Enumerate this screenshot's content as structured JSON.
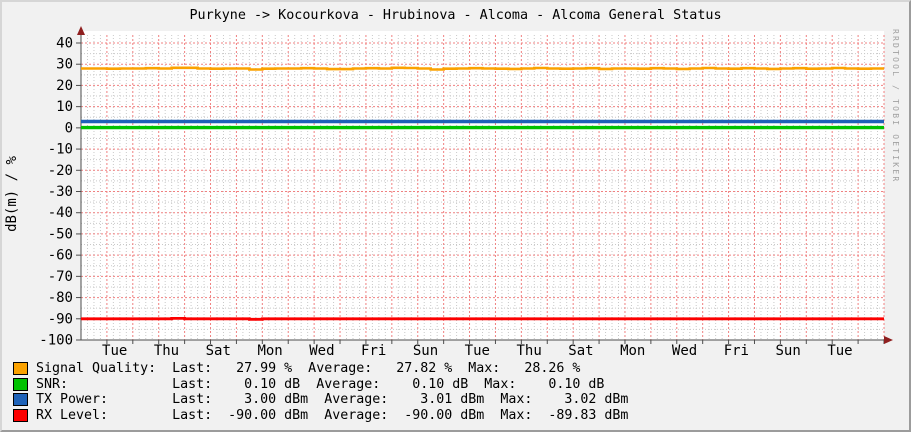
{
  "title": "Purkyne -> Kocourkova - Hrubinova - Alcoma - Alcoma General Status",
  "watermark": "RRDTOOL / TOBI OETIKER",
  "colors": {
    "background": "#f1f1f1",
    "canvas": "#ffffff",
    "grid_minor": "#c9c9c9",
    "grid_major": "#f08080",
    "axis": "#4d4d4d",
    "arrow": "#8f1f1f",
    "tick_text": "#000000",
    "watermark": "#a0a0a0"
  },
  "legend": {
    "rows": [
      {
        "name": "Signal Quality",
        "color": "#fba200",
        "unit": "%",
        "last": "27.99 %",
        "average": "27.82 %",
        "max": "28.26 %",
        "text": "Signal Quality:  Last:   27.99 %  Average:   27.82 %  Max:   28.26 %"
      },
      {
        "name": "SNR",
        "color": "#00c200",
        "unit": "dB",
        "last": "0.10 dB",
        "average": "0.10 dB",
        "max": "0.10 dB",
        "text": "SNR:             Last:    0.10 dB  Average:    0.10 dB  Max:    0.10 dB"
      },
      {
        "name": "TX Power",
        "color": "#1e62b8",
        "unit": "dBm",
        "last": "3.00 dBm",
        "average": "3.01 dBm",
        "max": "3.02 dBm",
        "text": "TX Power:        Last:    3.00 dBm  Average:    3.01 dBm  Max:    3.02 dBm"
      },
      {
        "name": "RX Level",
        "color": "#fc0000",
        "unit": "dBm",
        "last": "-90.00 dBm",
        "average": "-90.00 dBm",
        "max": "-89.83 dBm",
        "text": "RX Level:        Last:  -90.00 dBm  Average:  -90.00 dBm  Max:  -89.83 dBm"
      }
    ]
  },
  "chart_data": {
    "type": "line",
    "title": "Purkyne -> Kocourkova - Hrubinova - Alcoma - Alcoma General Status",
    "xlabel": "",
    "ylabel": "dB(m) / %",
    "ylim": [
      -100,
      40
    ],
    "y_ticks": [
      40,
      30,
      20,
      10,
      0,
      -10,
      -20,
      -30,
      -40,
      -50,
      -60,
      -70,
      -80,
      -90,
      -100
    ],
    "x_days": 31,
    "x_tick_labels": [
      "Tue",
      "Thu",
      "Sat",
      "Mon",
      "Wed",
      "Fri",
      "Sun",
      "Tue",
      "Thu",
      "Sat",
      "Mon",
      "Wed",
      "Fri",
      "Sun",
      "Tue"
    ],
    "x_tick_days": [
      1.3,
      3.3,
      5.3,
      7.3,
      9.3,
      11.3,
      13.3,
      15.3,
      17.3,
      19.3,
      21.3,
      23.3,
      25.3,
      27.3,
      29.3
    ],
    "grid": {
      "on": true,
      "minor_y_step": 5,
      "major_y_step": 10,
      "minor_x_step_days": 0.25,
      "major_x_step_days": 1
    },
    "legend_position": "bottom",
    "series": [
      {
        "name": "Signal Quality",
        "unit": "%",
        "color": "#fba200",
        "width": 2.6,
        "x_step_days": 0.5,
        "values": [
          28,
          28,
          27.9,
          28,
          28,
          28.1,
          28,
          28.3,
          28.3,
          28,
          27.9,
          28,
          28,
          27.5,
          27.9,
          28,
          28,
          28.1,
          28,
          27.7,
          27.7,
          28,
          28.1,
          28,
          28.3,
          28.2,
          28,
          27.5,
          27.9,
          28,
          28.1,
          28,
          27.9,
          27.8,
          28,
          28.2,
          28,
          27.9,
          28,
          28.1,
          27.8,
          28,
          28,
          27.9,
          28.1,
          28,
          27.8,
          28,
          28.2,
          28,
          27.9,
          28.1,
          28,
          27.8,
          28,
          28.1,
          27.9,
          28,
          28.2,
          28,
          27.9,
          28,
          28
        ]
      },
      {
        "name": "TX Power",
        "unit": "dBm",
        "color": "#1e62b8",
        "width": 3.4,
        "x_step_days": 31,
        "values": [
          3,
          3
        ]
      },
      {
        "name": "SNR",
        "unit": "dB",
        "color": "#00c200",
        "width": 3.4,
        "x_step_days": 31,
        "values": [
          0.1,
          0.1
        ]
      },
      {
        "name": "RX Level",
        "unit": "dBm",
        "color": "#fc0000",
        "width": 2.8,
        "x_step_days": 0.5,
        "values": [
          -90,
          -90,
          -90,
          -90,
          -90,
          -90,
          -90,
          -89.83,
          -90,
          -90,
          -90,
          -90,
          -90,
          -90.25,
          -90,
          -90,
          -90,
          -90,
          -90,
          -90,
          -90,
          -90,
          -90,
          -90,
          -90,
          -90,
          -90,
          -90,
          -90,
          -90,
          -90,
          -90,
          -90,
          -90,
          -90,
          -90,
          -90,
          -90,
          -90,
          -90,
          -90,
          -90,
          -90,
          -90,
          -90,
          -90,
          -90,
          -90,
          -90,
          -90,
          -90,
          -90,
          -90,
          -90,
          -90,
          -90,
          -90,
          -90,
          -90,
          -90,
          -90,
          -90,
          -90
        ]
      }
    ]
  }
}
